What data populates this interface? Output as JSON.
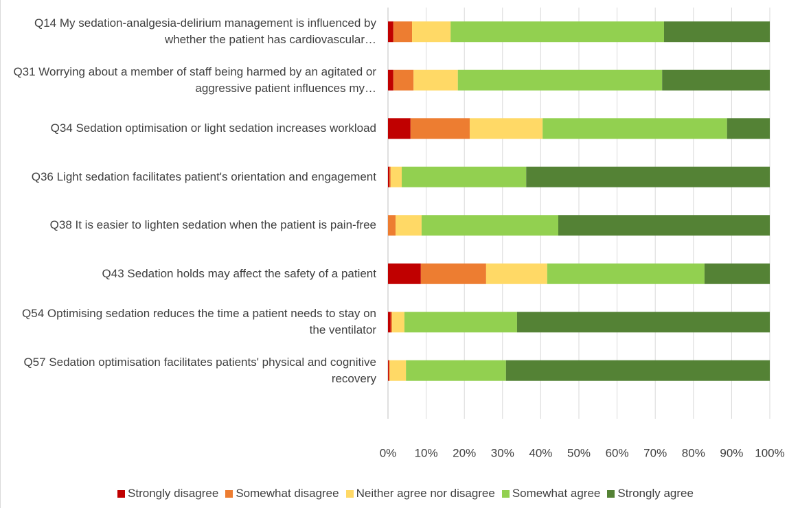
{
  "chart_data": {
    "type": "stacked_barh",
    "categories": [
      "Q14 My sedation-analgesia-delirium management is influenced by whether the patient has cardiovascular…",
      "Q31 Worrying about a member of staff being harmed by an agitated or aggressive patient influences my…",
      "Q34 Sedation optimisation or light sedation increases workload",
      "Q36 Light sedation facilitates patient's orientation and engagement",
      "Q38 It is easier to lighten sedation when the patient is pain-free",
      "Q43 Sedation holds may affect the safety of a patient",
      "Q54 Optimising sedation reduces the time a patient needs to stay on the ventilator",
      "Q57 Sedation optimisation facilitates patients' physical and cognitive recovery"
    ],
    "series": [
      {
        "name": "Strongly disagree",
        "color": "#c00000",
        "values": [
          1.4,
          1.4,
          5.9,
          0.4,
          0,
          8.6,
          0.7,
          0.2
        ]
      },
      {
        "name": "Somewhat disagree",
        "color": "#ed7d31",
        "values": [
          4.9,
          5.3,
          15.5,
          0.3,
          2.0,
          17.1,
          0.4,
          0.3
        ]
      },
      {
        "name": "Neither agree nor disagree",
        "color": "#ffd966",
        "values": [
          10.1,
          11.6,
          19.1,
          2.9,
          6.8,
          16.0,
          3.2,
          4.2
        ]
      },
      {
        "name": "Somewhat agree",
        "color": "#92d050",
        "values": [
          55.9,
          53.5,
          48.3,
          32.6,
          35.8,
          41.2,
          29.5,
          26.2
        ]
      },
      {
        "name": "Strongly agree",
        "color": "#548235",
        "values": [
          27.7,
          28.2,
          11.2,
          63.8,
          55.4,
          17.1,
          66.2,
          69.1
        ]
      }
    ],
    "xlim": [
      0,
      100
    ],
    "xticks": [
      {
        "value": 0,
        "label": "0%"
      },
      {
        "value": 10,
        "label": "10%"
      },
      {
        "value": 20,
        "label": "20%"
      },
      {
        "value": 30,
        "label": "30%"
      },
      {
        "value": 40,
        "label": "40%"
      },
      {
        "value": 50,
        "label": "50%"
      },
      {
        "value": 60,
        "label": "60%"
      },
      {
        "value": 70,
        "label": "70%"
      },
      {
        "value": 80,
        "label": "80%"
      },
      {
        "value": 90,
        "label": "90%"
      },
      {
        "value": 100,
        "label": "100%"
      }
    ],
    "grid": true,
    "legend": "bottom"
  }
}
